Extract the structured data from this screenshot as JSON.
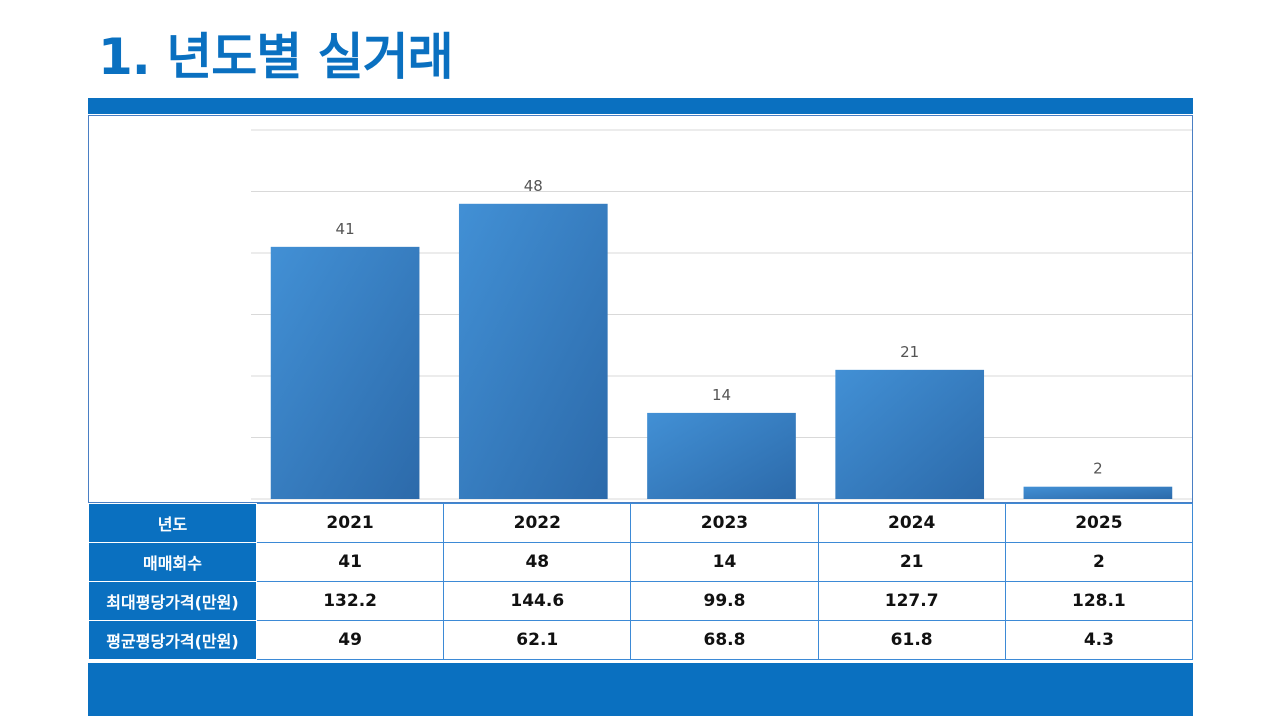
{
  "title": "1. 년도별 실거래",
  "colors": {
    "accent": "#0a70c0",
    "bar_light": "#4290d5",
    "bar_dark": "#2c6aaa",
    "grid": "#d9d9d9"
  },
  "chart_data": {
    "type": "bar",
    "categories": [
      "2021",
      "2022",
      "2023",
      "2024",
      "2025"
    ],
    "values": [
      41,
      48,
      14,
      21,
      2
    ],
    "data_labels": [
      "41",
      "48",
      "14",
      "21",
      "2"
    ],
    "ylim": [
      0,
      60
    ],
    "grid": true,
    "legend": "none"
  },
  "table": {
    "rows": [
      {
        "header": "년도",
        "cells": [
          "2021",
          "2022",
          "2023",
          "2024",
          "2025"
        ]
      },
      {
        "header": "매매회수",
        "cells": [
          "41",
          "48",
          "14",
          "21",
          "2"
        ]
      },
      {
        "header": "최대평당가격(만원)",
        "cells": [
          "132.2",
          "144.6",
          "99.8",
          "127.7",
          "128.1"
        ]
      },
      {
        "header": "평균평당가격(만원)",
        "cells": [
          "49",
          "62.1",
          "68.8",
          "61.8",
          "4.3"
        ]
      }
    ]
  }
}
